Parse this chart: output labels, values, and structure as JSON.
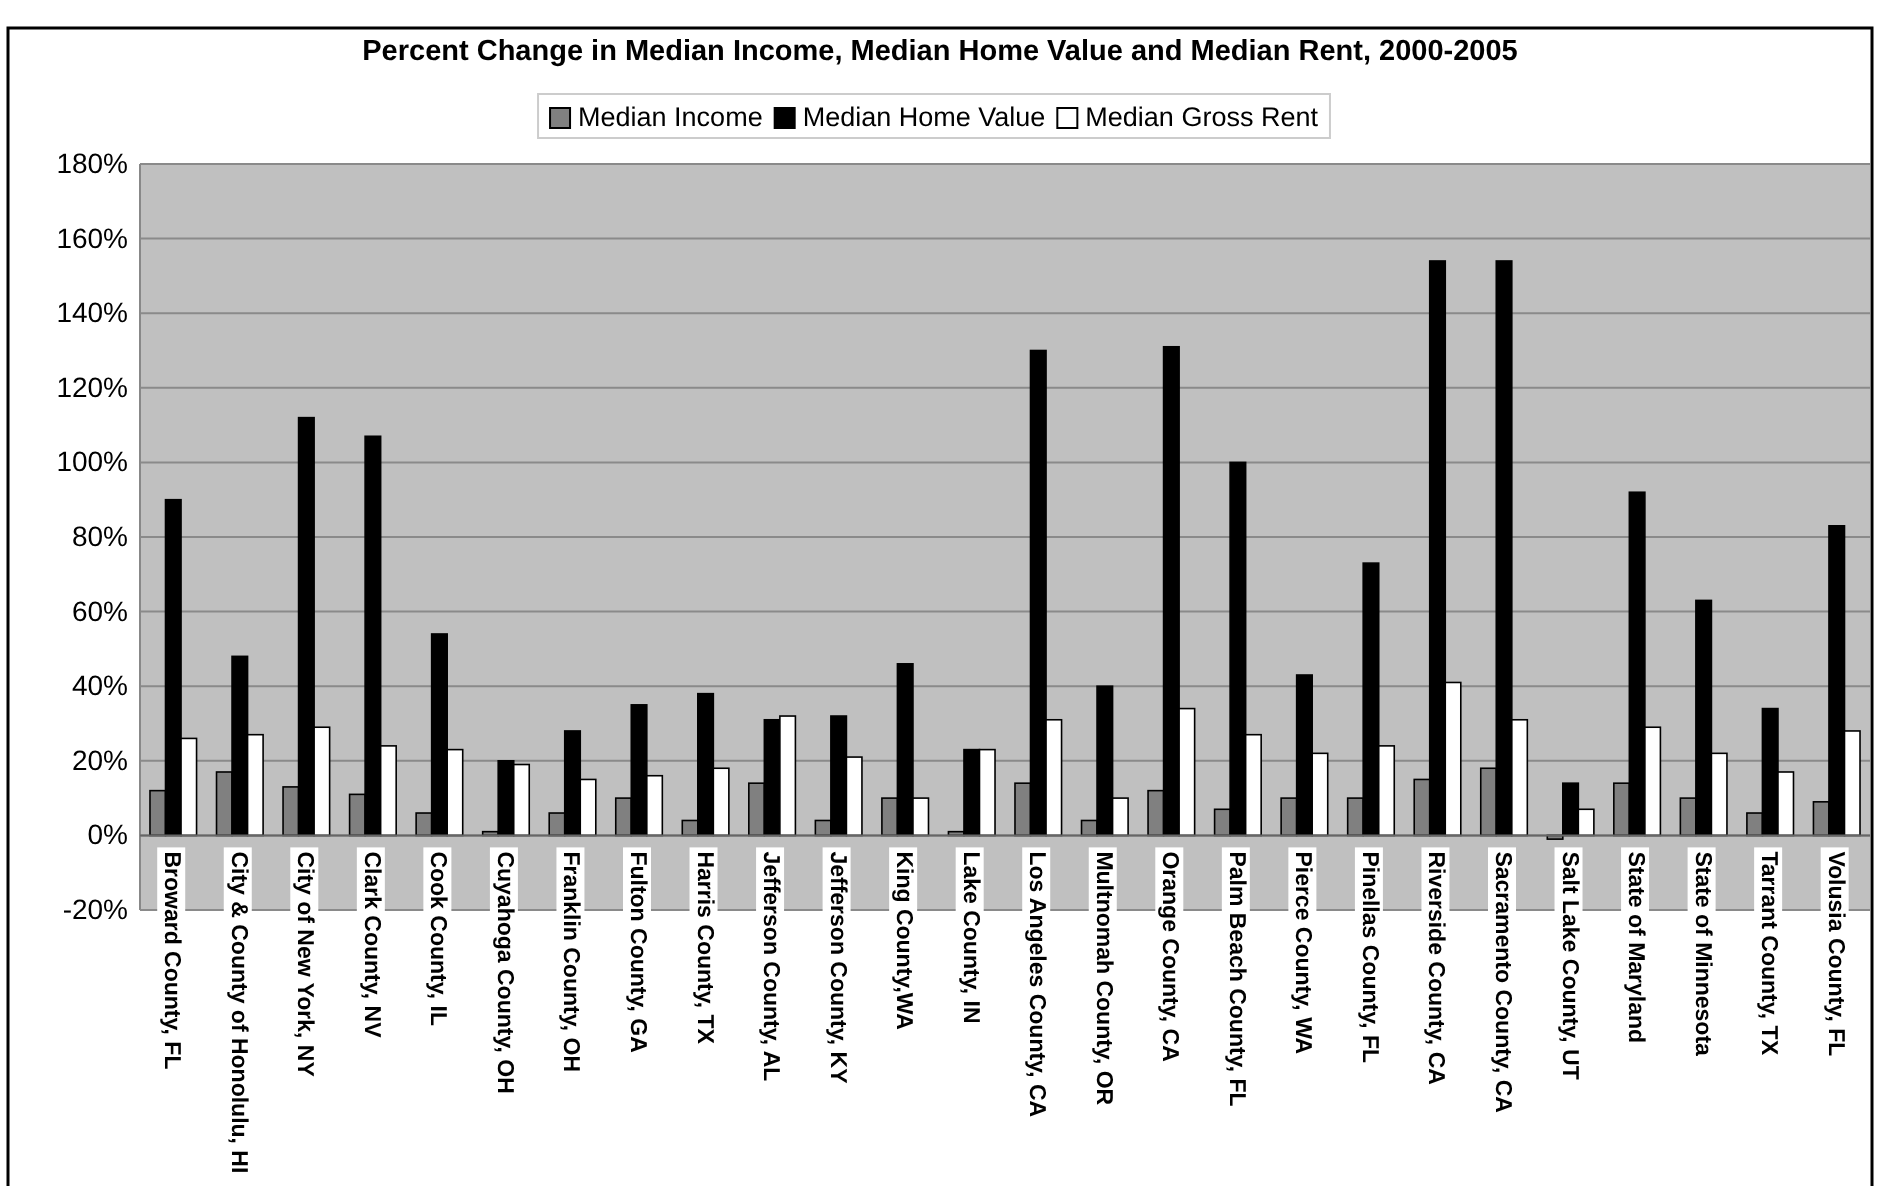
{
  "chart_data": {
    "type": "bar",
    "title": "Percent Change in Median Income, Median Home Value and Median Rent, 2000-2005",
    "categories": [
      "Broward County, FL",
      "City & County of Honolulu, HI",
      "City of New York, NY",
      "Clark County, NV",
      "Cook County, IL",
      "Cuyahoga County, OH",
      "Franklin County, OH",
      "Fulton County, GA",
      "Harris County, TX",
      "Jefferson County, AL",
      "Jefferson County, KY",
      "King County,WA",
      "Lake County, IN",
      "Los Angeles County, CA",
      "Multnomah County, OR",
      "Orange County, CA",
      "Palm Beach County, FL",
      "Pierce County, WA",
      "Pinellas County, FL",
      "Riverside County, CA",
      "Sacramento County, CA",
      "Salt Lake County, UT",
      "State of Maryland",
      "State of Minnesota",
      "Tarrant County, TX",
      "Volusia County, FL"
    ],
    "series": [
      {
        "name": "Median Income",
        "color": "#808080",
        "values": [
          12,
          17,
          13,
          11,
          6,
          1,
          6,
          10,
          4,
          14,
          4,
          10,
          1,
          14,
          4,
          12,
          7,
          10,
          10,
          15,
          18,
          -1,
          14,
          10,
          6,
          9
        ]
      },
      {
        "name": "Median Home Value",
        "color": "#000000",
        "values": [
          90,
          48,
          112,
          107,
          54,
          20,
          28,
          35,
          38,
          31,
          32,
          46,
          23,
          130,
          40,
          131,
          100,
          43,
          73,
          154,
          154,
          14,
          92,
          63,
          34,
          83
        ]
      },
      {
        "name": "Median Gross Rent",
        "color": "#ffffff",
        "values": [
          26,
          27,
          29,
          24,
          23,
          19,
          15,
          16,
          18,
          32,
          21,
          10,
          23,
          31,
          10,
          34,
          27,
          22,
          24,
          41,
          31,
          7,
          29,
          22,
          17,
          28
        ]
      }
    ],
    "ylim": [
      -20,
      180
    ],
    "yticks": [
      {
        "value": -20,
        "label": "-20%"
      },
      {
        "value": 0,
        "label": "0%"
      },
      {
        "value": 20,
        "label": "20%"
      },
      {
        "value": 40,
        "label": "40%"
      },
      {
        "value": 60,
        "label": "60%"
      },
      {
        "value": 80,
        "label": "80%"
      },
      {
        "value": 100,
        "label": "100%"
      },
      {
        "value": 120,
        "label": "120%"
      },
      {
        "value": 140,
        "label": "140%"
      },
      {
        "value": 160,
        "label": "160%"
      },
      {
        "value": 180,
        "label": "180%"
      }
    ],
    "grid": "y",
    "legend": "top"
  }
}
